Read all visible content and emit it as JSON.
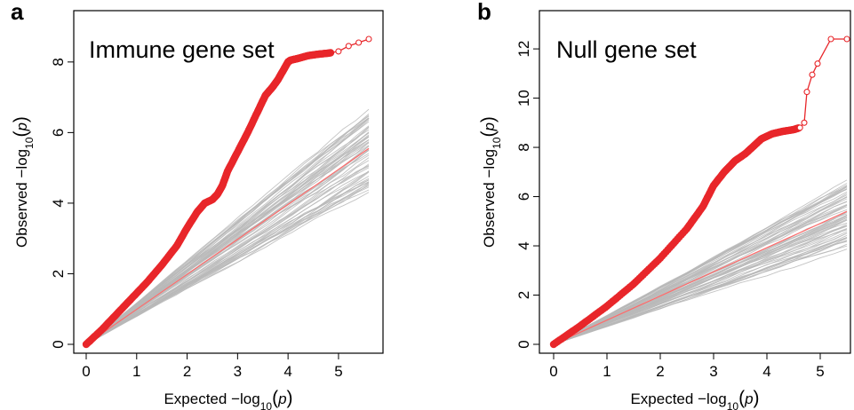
{
  "chart_data": [
    {
      "panel_label": "a",
      "type": "line",
      "title": "Immune gene set",
      "xlabel": "Expected",
      "ylabel": "Observed",
      "axis_expr": {
        "prefix": "−log",
        "sub": "10",
        "open": "(",
        "var": "p",
        "close": ")"
      },
      "xlim": [
        0,
        5.6
      ],
      "ylim": [
        0,
        8.7
      ],
      "xticks": [
        "0",
        "1",
        "2",
        "3",
        "4",
        "5"
      ],
      "yticks": [
        "0",
        "2",
        "4",
        "6",
        "8"
      ],
      "series": [
        {
          "role": "observed",
          "color": "#e8262a",
          "x": [
            0,
            0.3,
            0.6,
            0.9,
            1.2,
            1.5,
            1.8,
            2.0,
            2.2,
            2.35,
            2.5,
            2.6,
            2.7,
            2.8,
            3.0,
            3.2,
            3.4,
            3.55,
            3.7,
            3.8,
            3.9,
            4.0,
            4.05,
            4.2,
            4.4,
            4.6,
            4.8,
            5.0,
            5.2,
            5.4,
            5.6
          ],
          "y": [
            0,
            0.4,
            0.85,
            1.3,
            1.75,
            2.25,
            2.8,
            3.3,
            3.75,
            4.0,
            4.1,
            4.25,
            4.5,
            4.9,
            5.45,
            6.0,
            6.6,
            7.05,
            7.3,
            7.5,
            7.75,
            8.0,
            8.05,
            8.1,
            8.18,
            8.22,
            8.25,
            8.3,
            8.45,
            8.55,
            8.65
          ],
          "hollow_tail_from_x": 4.85
        },
        {
          "role": "null_reference",
          "color": "#ff6b6b",
          "x": [
            0,
            5.6
          ],
          "y": [
            0,
            5.55
          ]
        }
      ],
      "null_band": {
        "color": "#b8b8b8",
        "count": 60,
        "x_end": 5.6,
        "y_end_min": 4.4,
        "y_end_max": 6.6
      }
    },
    {
      "panel_label": "b",
      "type": "line",
      "title": "Null gene set",
      "xlabel": "Expected",
      "ylabel": "Observed",
      "axis_expr": {
        "prefix": "−log",
        "sub": "10",
        "open": "(",
        "var": "p",
        "close": ")"
      },
      "xlim": [
        0,
        5.5
      ],
      "ylim": [
        0,
        12.4
      ],
      "xticks": [
        "0",
        "1",
        "2",
        "3",
        "4",
        "5"
      ],
      "yticks": [
        "0",
        "2",
        "4",
        "6",
        "8",
        "10",
        "12"
      ],
      "series": [
        {
          "role": "observed",
          "color": "#e8262a",
          "x": [
            0,
            0.5,
            1.0,
            1.5,
            2.0,
            2.5,
            2.8,
            3.0,
            3.2,
            3.4,
            3.6,
            3.75,
            3.9,
            4.1,
            4.3,
            4.5,
            4.62,
            4.7,
            4.75,
            4.85,
            4.95,
            5.2,
            5.5
          ],
          "y": [
            0,
            0.75,
            1.55,
            2.45,
            3.5,
            4.7,
            5.6,
            6.45,
            7.0,
            7.45,
            7.75,
            8.05,
            8.35,
            8.55,
            8.65,
            8.72,
            8.8,
            9.0,
            10.25,
            10.95,
            11.4,
            12.4,
            12.4
          ],
          "hollow_tail_from_x": 4.6
        },
        {
          "role": "null_reference",
          "color": "#ff6b6b",
          "x": [
            0,
            5.5
          ],
          "y": [
            0,
            5.4
          ]
        }
      ],
      "null_band": {
        "color": "#b8b8b8",
        "count": 60,
        "x_end": 5.5,
        "y_end_min": 3.9,
        "y_end_max": 6.5
      }
    }
  ]
}
